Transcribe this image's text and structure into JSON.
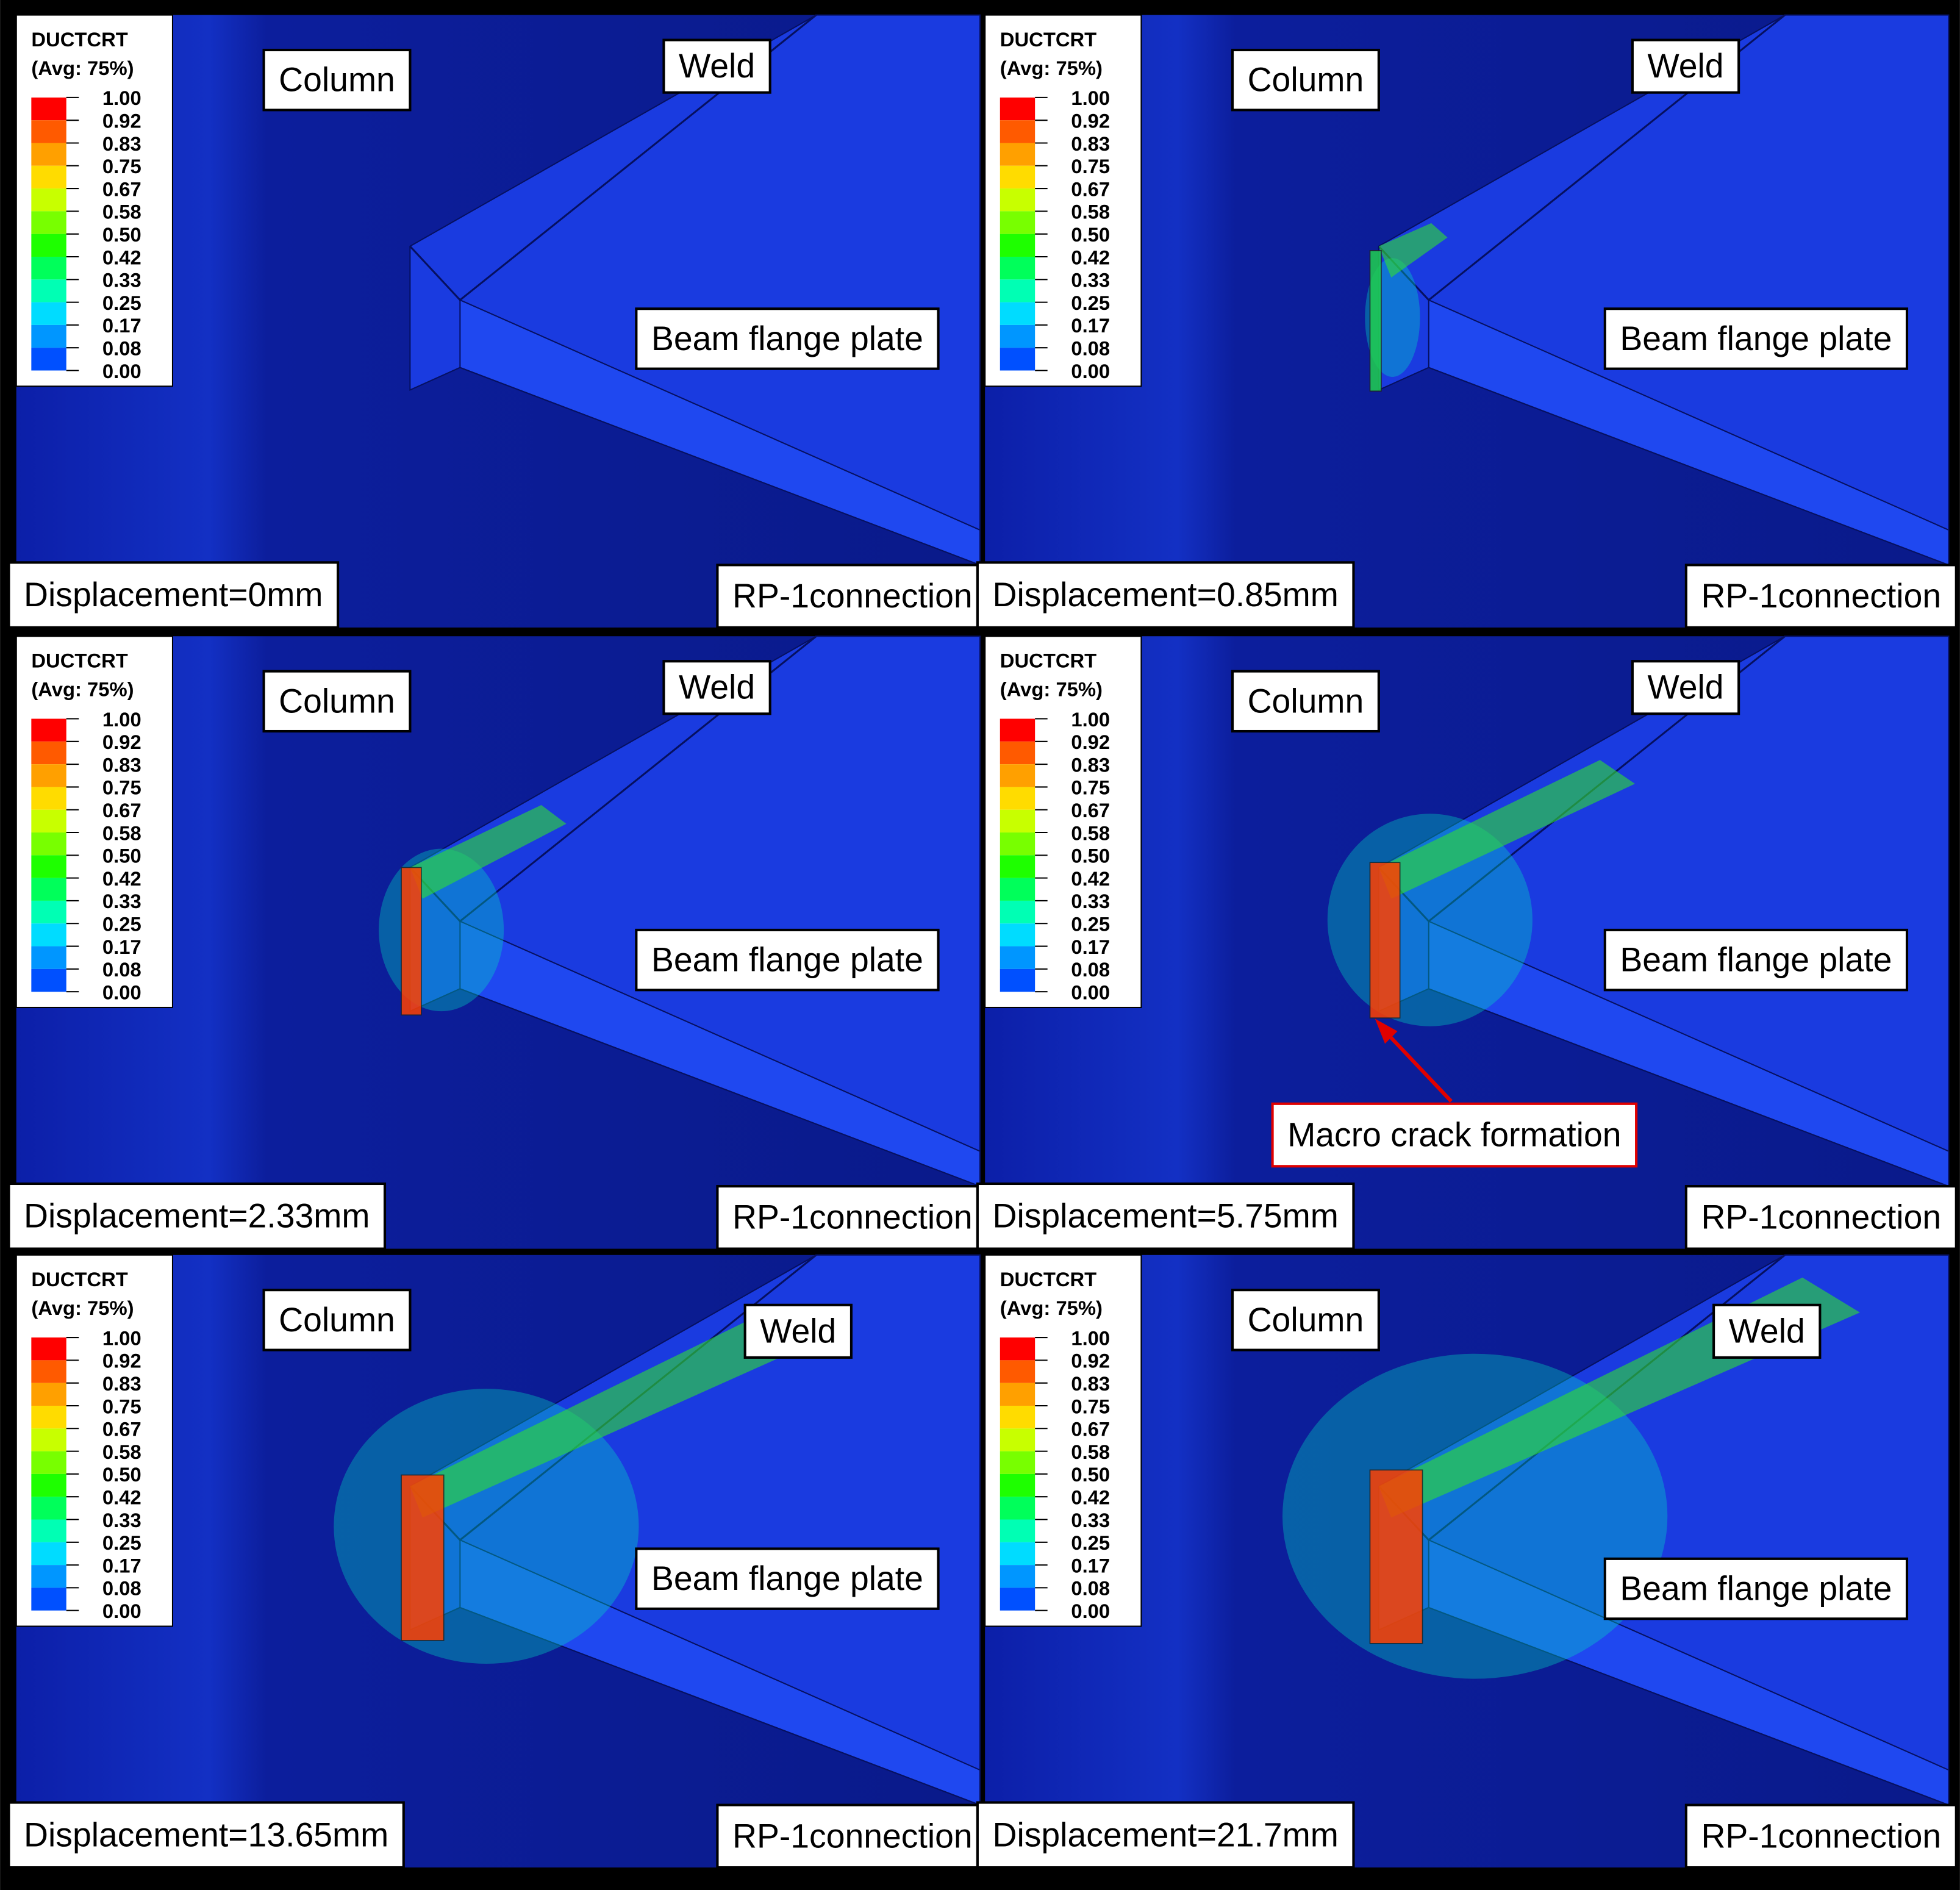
{
  "legend": {
    "title": "DUCTCRT",
    "subtitle": "(Avg: 75%)",
    "ticks": [
      "1.00",
      "0.92",
      "0.83",
      "0.75",
      "0.67",
      "0.58",
      "0.50",
      "0.42",
      "0.33",
      "0.25",
      "0.17",
      "0.08",
      "0.00"
    ]
  },
  "labels": {
    "column": "Column",
    "weld": "Weld",
    "beam": "Beam flange plate",
    "connection": "RP-1connection"
  },
  "panels": [
    {
      "displacement": "Displacement=0mm"
    },
    {
      "displacement": "Displacement=0.85mm"
    },
    {
      "displacement": "Displacement=2.33mm"
    },
    {
      "displacement": "Displacement=5.75mm",
      "annotation": "Macro crack formation"
    },
    {
      "displacement": "Displacement=13.65mm"
    },
    {
      "displacement": "Displacement=21.7mm"
    }
  ]
}
